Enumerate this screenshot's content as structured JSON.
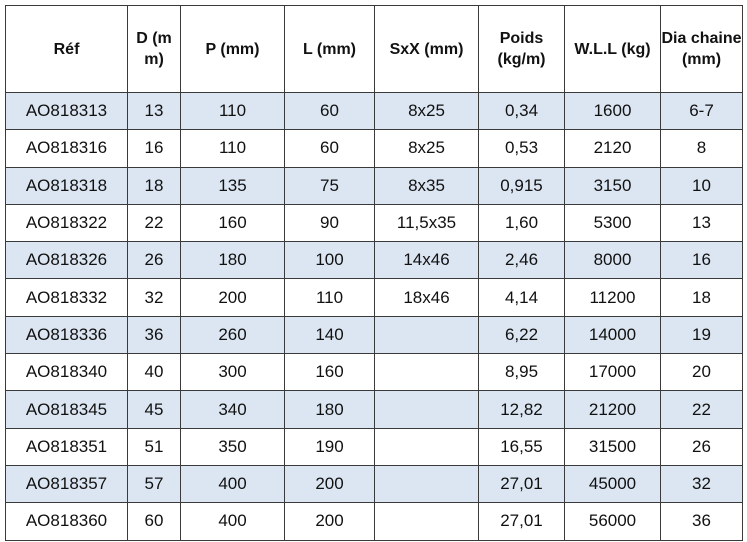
{
  "table": {
    "columns": [
      {
        "key": "ref",
        "label": "Réf"
      },
      {
        "key": "d",
        "label": "D (m m)"
      },
      {
        "key": "p",
        "label": "P (mm)"
      },
      {
        "key": "l",
        "label": "L (mm)"
      },
      {
        "key": "sxx",
        "label": "SxX (mm)"
      },
      {
        "key": "poids",
        "label": "Poids (kg/m)"
      },
      {
        "key": "wll",
        "label": "W.L.L (kg)"
      },
      {
        "key": "dia",
        "label": "Dia chaine (mm)"
      }
    ],
    "rows": [
      [
        "AO818313",
        "13",
        "110",
        "60",
        "8x25",
        "0,34",
        "1600",
        "6-7"
      ],
      [
        "AO818316",
        "16",
        "110",
        "60",
        "8x25",
        "0,53",
        "2120",
        "8"
      ],
      [
        "AO818318",
        "18",
        "135",
        "75",
        "8x35",
        "0,915",
        "3150",
        "10"
      ],
      [
        "AO818322",
        "22",
        "160",
        "90",
        "11,5x35",
        "1,60",
        "5300",
        "13"
      ],
      [
        "AO818326",
        "26",
        "180",
        "100",
        "14x46",
        "2,46",
        "8000",
        "16"
      ],
      [
        "AO818332",
        "32",
        "200",
        "110",
        "18x46",
        "4,14",
        "11200",
        "18"
      ],
      [
        "AO818336",
        "36",
        "260",
        "140",
        "",
        "6,22",
        "14000",
        "19"
      ],
      [
        "AO818340",
        "40",
        "300",
        "160",
        "",
        "8,95",
        "17000",
        "20"
      ],
      [
        "AO818345",
        "45",
        "340",
        "180",
        "",
        "12,82",
        "21200",
        "22"
      ],
      [
        "AO818351",
        "51",
        "350",
        "190",
        "",
        "16,55",
        "31500",
        "26"
      ],
      [
        "AO818357",
        "57",
        "400",
        "200",
        "",
        "27,01",
        "45000",
        "32"
      ],
      [
        "AO818360",
        "60",
        "400",
        "200",
        "",
        "27,01",
        "56000",
        "36"
      ]
    ]
  },
  "colors": {
    "row_shade": "#dce6f2",
    "row_plain": "#ffffff",
    "border": "#3a3a3a"
  }
}
